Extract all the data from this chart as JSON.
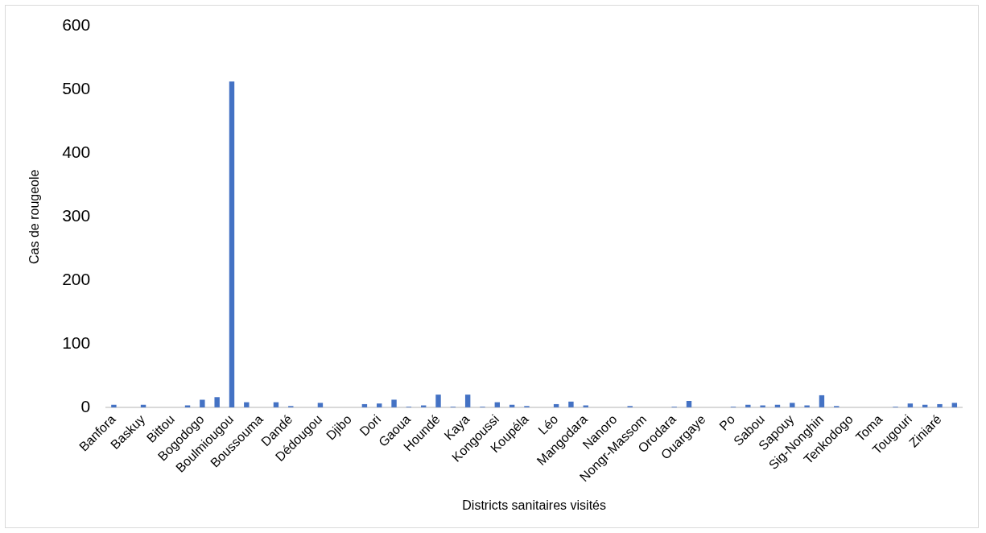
{
  "chart_data": {
    "type": "bar",
    "xlabel": "Districts sanitaires visités",
    "ylabel": "Cas de rougeole",
    "categories": [
      "Banfora",
      null,
      "Baskuy",
      null,
      "Bittou",
      null,
      "Bogodogo",
      null,
      "Boulmiougou",
      null,
      "Boussouma",
      null,
      "Dandé",
      null,
      "Dédougou",
      null,
      "Djibo",
      null,
      "Dori",
      null,
      "Gaoua",
      null,
      "Houndé",
      null,
      "Kaya",
      null,
      "Kongoussi",
      null,
      "Koupéla",
      null,
      "Léo",
      null,
      "Mangodara",
      null,
      "Nanoro",
      null,
      "Nongr-Massom",
      null,
      "Orodara",
      null,
      "Ouargaye",
      null,
      "Po",
      null,
      "Sabou",
      null,
      "Sapouy",
      null,
      "Sig-Nonghin",
      null,
      "Tenkodogo",
      null,
      "Toma",
      null,
      "Tougouri",
      null,
      "Ziniaré",
      null
    ],
    "values": [
      4,
      0,
      4,
      0,
      0,
      3,
      12,
      16,
      513,
      8,
      0,
      8,
      2,
      0,
      7,
      0,
      0,
      5,
      6,
      12,
      1,
      3,
      20,
      1,
      20,
      1,
      8,
      4,
      2,
      0,
      5,
      9,
      3,
      0,
      0,
      2,
      0,
      0,
      1,
      10,
      0,
      0,
      1,
      4,
      3,
      4,
      7,
      3,
      19,
      2,
      0,
      0,
      0,
      1,
      6,
      4,
      5,
      7
    ],
    "color": "#4472c4",
    "ylim": [
      0,
      600
    ],
    "yticks": [
      0,
      100,
      200,
      300,
      400,
      500,
      600
    ],
    "grid": false,
    "legend": false
  }
}
